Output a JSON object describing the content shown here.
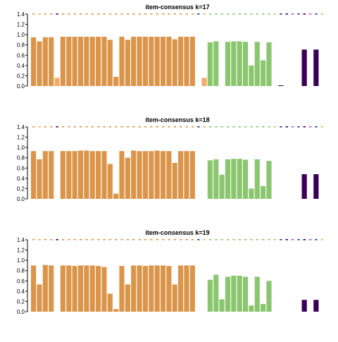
{
  "colors": {
    "orange": "#db954a",
    "light_orange": "#f5ab68",
    "green": "#8ac66e",
    "purple": "#3a0054",
    "marker_blue": "#2233aa",
    "marker_magenta": "#cc44cc",
    "marker_lightgreen": "#99dd55"
  },
  "chart_data": [
    {
      "type": "bar",
      "title": "item-consensus k=17",
      "ylim": [
        0,
        1.4
      ],
      "yticks": [
        "0.0",
        "0.2",
        "0.4",
        "0.6",
        "0.8",
        "1.0",
        "1.2",
        "1.4"
      ],
      "items": [
        {
          "c": "orange",
          "v": 0.95
        },
        {
          "c": "orange",
          "v": 0.87
        },
        {
          "c": "orange",
          "v": 0.95
        },
        {
          "c": "orange",
          "v": 0.95
        },
        {
          "c": "light_orange",
          "v": 0.16
        },
        {
          "c": "orange",
          "v": 0.96
        },
        {
          "c": "orange",
          "v": 0.96
        },
        {
          "c": "orange",
          "v": 0.96
        },
        {
          "c": "orange",
          "v": 0.96
        },
        {
          "c": "orange",
          "v": 0.96
        },
        {
          "c": "orange",
          "v": 0.96
        },
        {
          "c": "orange",
          "v": 0.96
        },
        {
          "c": "orange",
          "v": 0.96
        },
        {
          "c": "orange",
          "v": 0.9
        },
        {
          "c": "orange",
          "v": 0.18
        },
        {
          "c": "orange",
          "v": 0.96
        },
        {
          "c": "orange",
          "v": 0.9
        },
        {
          "c": "orange",
          "v": 0.96
        },
        {
          "c": "orange",
          "v": 0.96
        },
        {
          "c": "orange",
          "v": 0.96
        },
        {
          "c": "orange",
          "v": 0.96
        },
        {
          "c": "orange",
          "v": 0.96
        },
        {
          "c": "orange",
          "v": 0.96
        },
        {
          "c": "orange",
          "v": 0.96
        },
        {
          "c": "orange",
          "v": 0.91
        },
        {
          "c": "orange",
          "v": 0.96
        },
        {
          "c": "orange",
          "v": 0.96
        },
        {
          "c": "orange",
          "v": 0.96
        },
        {
          "c": "gap",
          "v": 0
        },
        {
          "c": "light_orange",
          "v": 0.16
        },
        {
          "c": "green",
          "v": 0.85
        },
        {
          "c": "green",
          "v": 0.87
        },
        {
          "c": "gap",
          "v": 0
        },
        {
          "c": "green",
          "v": 0.86
        },
        {
          "c": "green",
          "v": 0.87
        },
        {
          "c": "green",
          "v": 0.87
        },
        {
          "c": "green",
          "v": 0.86
        },
        {
          "c": "green",
          "v": 0.4
        },
        {
          "c": "green",
          "v": 0.86
        },
        {
          "c": "green",
          "v": 0.5
        },
        {
          "c": "green",
          "v": 0.85
        },
        {
          "c": "gap",
          "v": 0
        },
        {
          "c": "purple",
          "v": 0.01
        },
        {
          "c": "gap",
          "v": 0
        },
        {
          "c": "gap",
          "v": 0
        },
        {
          "c": "gap",
          "v": 0
        },
        {
          "c": "purple",
          "v": 0.71
        },
        {
          "c": "gap",
          "v": 0
        },
        {
          "c": "purple",
          "v": 0.71
        },
        {
          "c": "gap",
          "v": 0
        }
      ]
    },
    {
      "type": "bar",
      "title": "item-consensus k=18",
      "ylim": [
        0,
        1.4
      ],
      "yticks": [
        "0.0",
        "0.2",
        "0.4",
        "0.6",
        "0.8",
        "1.0",
        "1.2",
        "1.4"
      ],
      "items": [
        {
          "c": "orange",
          "v": 0.93
        },
        {
          "c": "orange",
          "v": 0.77
        },
        {
          "c": "orange",
          "v": 0.93
        },
        {
          "c": "orange",
          "v": 0.93
        },
        {
          "c": "gap",
          "v": 0
        },
        {
          "c": "orange",
          "v": 0.93
        },
        {
          "c": "orange",
          "v": 0.93
        },
        {
          "c": "orange",
          "v": 0.93
        },
        {
          "c": "orange",
          "v": 0.94
        },
        {
          "c": "orange",
          "v": 0.94
        },
        {
          "c": "orange",
          "v": 0.93
        },
        {
          "c": "orange",
          "v": 0.93
        },
        {
          "c": "orange",
          "v": 0.93
        },
        {
          "c": "orange",
          "v": 0.68
        },
        {
          "c": "orange",
          "v": 0.1
        },
        {
          "c": "orange",
          "v": 0.93
        },
        {
          "c": "orange",
          "v": 0.8
        },
        {
          "c": "orange",
          "v": 0.94
        },
        {
          "c": "orange",
          "v": 0.93
        },
        {
          "c": "orange",
          "v": 0.93
        },
        {
          "c": "orange",
          "v": 0.93
        },
        {
          "c": "orange",
          "v": 0.94
        },
        {
          "c": "orange",
          "v": 0.93
        },
        {
          "c": "orange",
          "v": 0.93
        },
        {
          "c": "orange",
          "v": 0.7
        },
        {
          "c": "orange",
          "v": 0.93
        },
        {
          "c": "orange",
          "v": 0.93
        },
        {
          "c": "orange",
          "v": 0.93
        },
        {
          "c": "gap",
          "v": 0
        },
        {
          "c": "gap",
          "v": 0
        },
        {
          "c": "green",
          "v": 0.75
        },
        {
          "c": "green",
          "v": 0.77
        },
        {
          "c": "green",
          "v": 0.47
        },
        {
          "c": "green",
          "v": 0.77
        },
        {
          "c": "green",
          "v": 0.78
        },
        {
          "c": "green",
          "v": 0.78
        },
        {
          "c": "green",
          "v": 0.76
        },
        {
          "c": "green",
          "v": 0.2
        },
        {
          "c": "green",
          "v": 0.77
        },
        {
          "c": "green",
          "v": 0.25
        },
        {
          "c": "green",
          "v": 0.74
        },
        {
          "c": "gap",
          "v": 0
        },
        {
          "c": "gap",
          "v": 0
        },
        {
          "c": "gap",
          "v": 0
        },
        {
          "c": "gap",
          "v": 0
        },
        {
          "c": "gap",
          "v": 0
        },
        {
          "c": "purple",
          "v": 0.48
        },
        {
          "c": "gap",
          "v": 0
        },
        {
          "c": "purple",
          "v": 0.48
        },
        {
          "c": "gap",
          "v": 0
        }
      ]
    },
    {
      "type": "bar",
      "title": "item-consensus k=19",
      "ylim": [
        0,
        1.4
      ],
      "yticks": [
        "0.0",
        "0.2",
        "0.4",
        "0.6",
        "0.8",
        "1.0",
        "1.2",
        "1.4"
      ],
      "items": [
        {
          "c": "orange",
          "v": 0.9
        },
        {
          "c": "orange",
          "v": 0.53
        },
        {
          "c": "orange",
          "v": 0.91
        },
        {
          "c": "orange",
          "v": 0.9
        },
        {
          "c": "gap",
          "v": 0
        },
        {
          "c": "orange",
          "v": 0.9
        },
        {
          "c": "orange",
          "v": 0.9
        },
        {
          "c": "orange",
          "v": 0.89
        },
        {
          "c": "orange",
          "v": 0.9
        },
        {
          "c": "orange",
          "v": 0.9
        },
        {
          "c": "orange",
          "v": 0.9
        },
        {
          "c": "orange",
          "v": 0.89
        },
        {
          "c": "orange",
          "v": 0.87
        },
        {
          "c": "orange",
          "v": 0.35
        },
        {
          "c": "orange",
          "v": 0.05
        },
        {
          "c": "orange",
          "v": 0.89
        },
        {
          "c": "orange",
          "v": 0.53
        },
        {
          "c": "orange",
          "v": 0.9
        },
        {
          "c": "orange",
          "v": 0.9
        },
        {
          "c": "orange",
          "v": 0.89
        },
        {
          "c": "orange",
          "v": 0.9
        },
        {
          "c": "orange",
          "v": 0.9
        },
        {
          "c": "orange",
          "v": 0.9
        },
        {
          "c": "orange",
          "v": 0.89
        },
        {
          "c": "orange",
          "v": 0.53
        },
        {
          "c": "orange",
          "v": 0.9
        },
        {
          "c": "orange",
          "v": 0.9
        },
        {
          "c": "orange",
          "v": 0.9
        },
        {
          "c": "gap",
          "v": 0
        },
        {
          "c": "gap",
          "v": 0
        },
        {
          "c": "green",
          "v": 0.62
        },
        {
          "c": "green",
          "v": 0.72
        },
        {
          "c": "green",
          "v": 0.24
        },
        {
          "c": "green",
          "v": 0.68
        },
        {
          "c": "green",
          "v": 0.7
        },
        {
          "c": "green",
          "v": 0.7
        },
        {
          "c": "green",
          "v": 0.68
        },
        {
          "c": "green",
          "v": 0.12
        },
        {
          "c": "green",
          "v": 0.68
        },
        {
          "c": "green",
          "v": 0.15
        },
        {
          "c": "green",
          "v": 0.6
        },
        {
          "c": "gap",
          "v": 0
        },
        {
          "c": "gap",
          "v": 0
        },
        {
          "c": "gap",
          "v": 0
        },
        {
          "c": "gap",
          "v": 0
        },
        {
          "c": "gap",
          "v": 0
        },
        {
          "c": "purple",
          "v": 0.23
        },
        {
          "c": "gap",
          "v": 0
        },
        {
          "c": "purple",
          "v": 0.23
        },
        {
          "c": "gap",
          "v": 0
        }
      ]
    }
  ],
  "marker_rows": [
    [
      "orange",
      "light_orange",
      "orange",
      "orange",
      "purple",
      "orange",
      "orange",
      "orange",
      "orange",
      "orange",
      "orange",
      "orange",
      "orange",
      "orange",
      "orange",
      "orange",
      "orange",
      "orange",
      "orange",
      "orange",
      "orange",
      "orange",
      "orange",
      "orange",
      "orange",
      "orange",
      "orange",
      "orange",
      "marker_blue",
      "light_orange",
      "green",
      "green",
      "green",
      "green",
      "green",
      "green",
      "green",
      "green",
      "green",
      "green",
      "green",
      "marker_lightgreen",
      "marker_blue",
      "purple",
      "marker_magenta",
      "marker_blue",
      "purple",
      "marker_magenta",
      "marker_blue",
      "marker_lightgreen"
    ],
    [
      "orange",
      "light_orange",
      "orange",
      "orange",
      "purple",
      "orange",
      "orange",
      "orange",
      "orange",
      "orange",
      "orange",
      "orange",
      "orange",
      "orange",
      "orange",
      "orange",
      "orange",
      "orange",
      "orange",
      "orange",
      "orange",
      "orange",
      "orange",
      "orange",
      "orange",
      "orange",
      "orange",
      "orange",
      "marker_blue",
      "light_orange",
      "green",
      "green",
      "green",
      "green",
      "green",
      "green",
      "green",
      "green",
      "green",
      "green",
      "green",
      "marker_lightgreen",
      "marker_blue",
      "purple",
      "marker_magenta",
      "marker_blue",
      "purple",
      "marker_magenta",
      "marker_blue",
      "marker_lightgreen"
    ],
    [
      "orange",
      "light_orange",
      "orange",
      "orange",
      "purple",
      "orange",
      "orange",
      "orange",
      "orange",
      "orange",
      "orange",
      "orange",
      "orange",
      "orange",
      "orange",
      "orange",
      "orange",
      "orange",
      "orange",
      "orange",
      "orange",
      "orange",
      "orange",
      "orange",
      "orange",
      "orange",
      "orange",
      "orange",
      "marker_blue",
      "light_orange",
      "green",
      "green",
      "green",
      "green",
      "green",
      "green",
      "green",
      "green",
      "green",
      "green",
      "green",
      "marker_lightgreen",
      "marker_blue",
      "purple",
      "marker_magenta",
      "marker_blue",
      "purple",
      "marker_magenta",
      "marker_blue",
      "marker_lightgreen"
    ]
  ]
}
